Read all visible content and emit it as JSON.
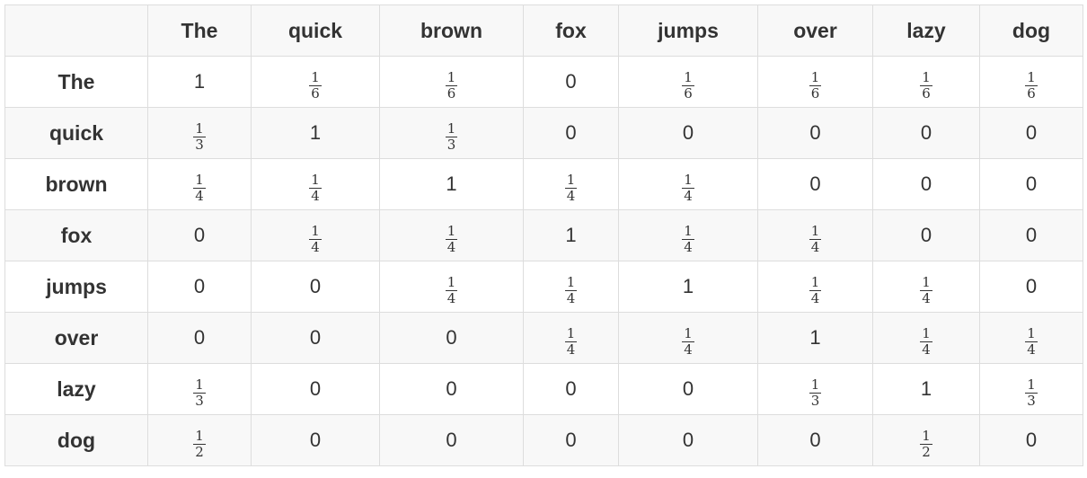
{
  "column_headers": [
    "",
    "The",
    "quick",
    "brown",
    "fox",
    "jumps",
    "over",
    "lazy",
    "dog"
  ],
  "rows": [
    {
      "label": "The",
      "cells": [
        "1",
        "1/6",
        "1/6",
        "0",
        "1/6",
        "1/6",
        "1/6",
        "1/6"
      ]
    },
    {
      "label": "quick",
      "cells": [
        "1/3",
        "1",
        "1/3",
        "0",
        "0",
        "0",
        "0",
        "0"
      ]
    },
    {
      "label": "brown",
      "cells": [
        "1/4",
        "1/4",
        "1",
        "1/4",
        "1/4",
        "0",
        "0",
        "0"
      ]
    },
    {
      "label": "fox",
      "cells": [
        "0",
        "1/4",
        "1/4",
        "1",
        "1/4",
        "1/4",
        "0",
        "0"
      ]
    },
    {
      "label": "jumps",
      "cells": [
        "0",
        "0",
        "1/4",
        "1/4",
        "1",
        "1/4",
        "1/4",
        "0"
      ]
    },
    {
      "label": "over",
      "cells": [
        "0",
        "0",
        "0",
        "1/4",
        "1/4",
        "1",
        "1/4",
        "1/4"
      ]
    },
    {
      "label": "lazy",
      "cells": [
        "1/3",
        "0",
        "0",
        "0",
        "0",
        "1/3",
        "1",
        "1/3"
      ]
    },
    {
      "label": "dog",
      "cells": [
        "1/2",
        "0",
        "0",
        "0",
        "0",
        "0",
        "1/2",
        "0"
      ]
    }
  ],
  "colors": {
    "border": "#dddddd",
    "stripe": "#f8f8f8",
    "text": "#333333"
  }
}
